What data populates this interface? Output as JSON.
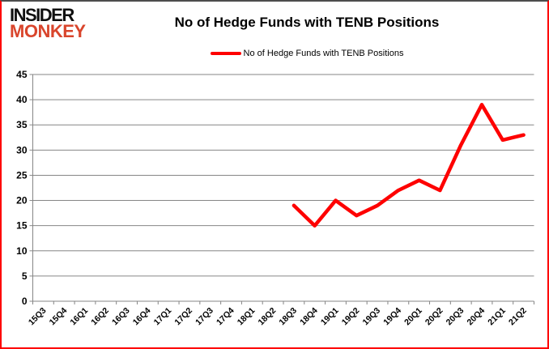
{
  "header": {
    "logo_line1": "INSIDER",
    "logo_line2": "MONKEY",
    "title": "No of Hedge Funds with TENB Positions"
  },
  "legend": {
    "label": "No of Hedge Funds with TENB Positions",
    "marker_color": "#fe0000"
  },
  "colors": {
    "line": "#fe0000",
    "grid": "#868686",
    "background": "#ffffff",
    "border": "#fe0000",
    "logo_black": "#101010",
    "logo_red": "#d9452c",
    "text": "#000000"
  },
  "chart_data": {
    "type": "line",
    "title": "No of Hedge Funds with TENB Positions",
    "categories": [
      "15Q3",
      "15Q4",
      "16Q1",
      "16Q2",
      "16Q3",
      "16Q4",
      "17Q1",
      "17Q2",
      "17Q3",
      "17Q4",
      "18Q1",
      "18Q2",
      "18Q3",
      "18Q4",
      "19Q1",
      "19Q2",
      "19Q3",
      "19Q4",
      "20Q1",
      "20Q2",
      "20Q3",
      "20Q4",
      "21Q1",
      "21Q2"
    ],
    "series": [
      {
        "name": "No of Hedge Funds with TENB Positions",
        "color": "#fe0000",
        "values": [
          null,
          null,
          null,
          null,
          null,
          null,
          null,
          null,
          null,
          null,
          null,
          null,
          19,
          15,
          20,
          17,
          19,
          22,
          24,
          22,
          31,
          39,
          32,
          33
        ]
      }
    ],
    "ylim": [
      0,
      45
    ],
    "ytick_step": 5,
    "grid": true,
    "legend_position": "top",
    "x_label_rotation": -45
  }
}
